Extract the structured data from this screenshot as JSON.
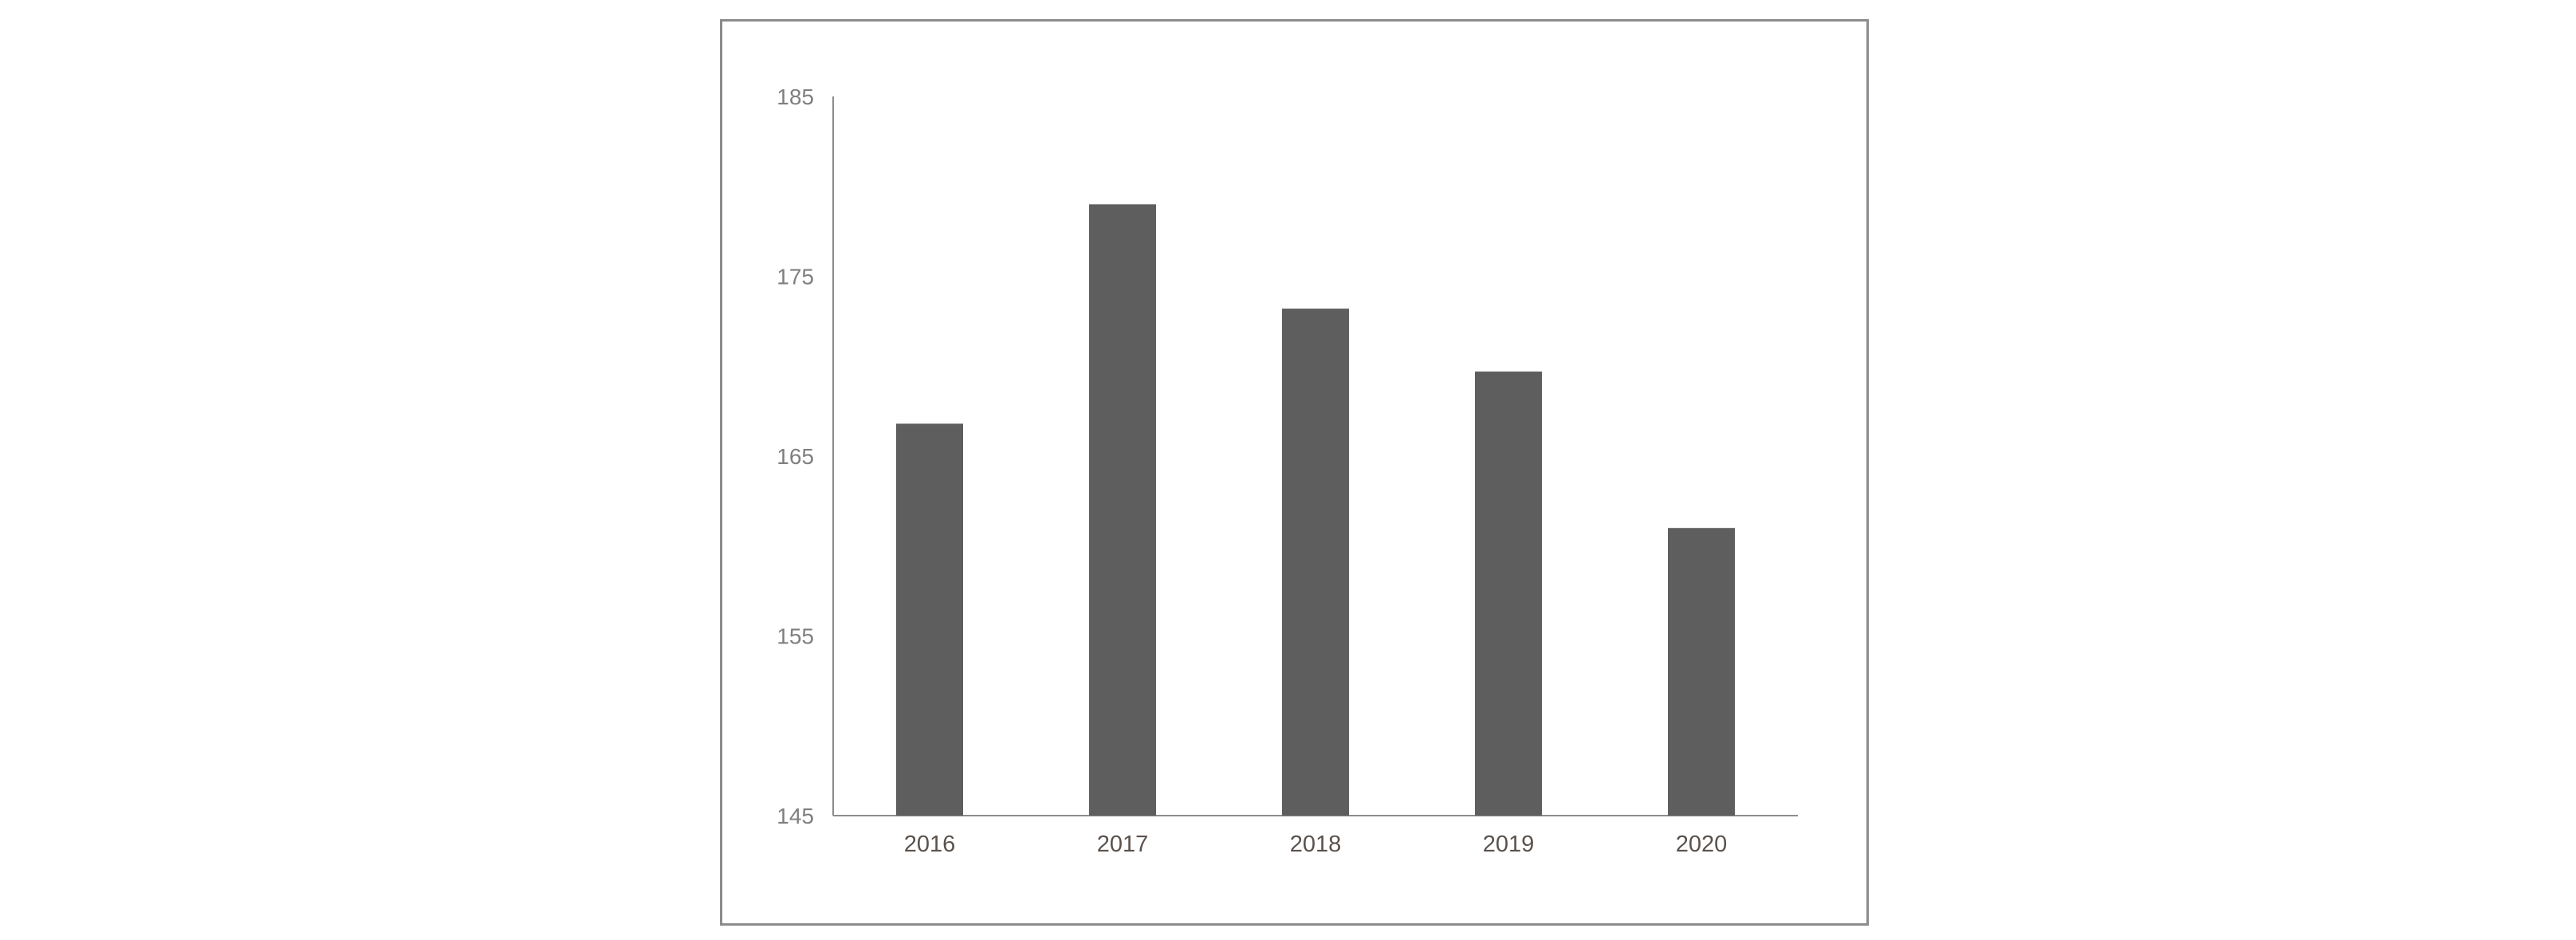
{
  "chart_data": {
    "type": "bar",
    "categories": [
      "2016",
      "2017",
      "2018",
      "2019",
      "2020"
    ],
    "values": [
      166.8,
      179.0,
      173.2,
      169.7,
      161.0
    ],
    "ylim": [
      145,
      185
    ],
    "yticks": [
      145,
      155,
      165,
      175,
      185
    ],
    "title": "",
    "xlabel": "",
    "ylabel": "",
    "bar_color": "#5e5e5e",
    "axis_color": "#8c8c8c",
    "grid": false,
    "legend": false
  }
}
